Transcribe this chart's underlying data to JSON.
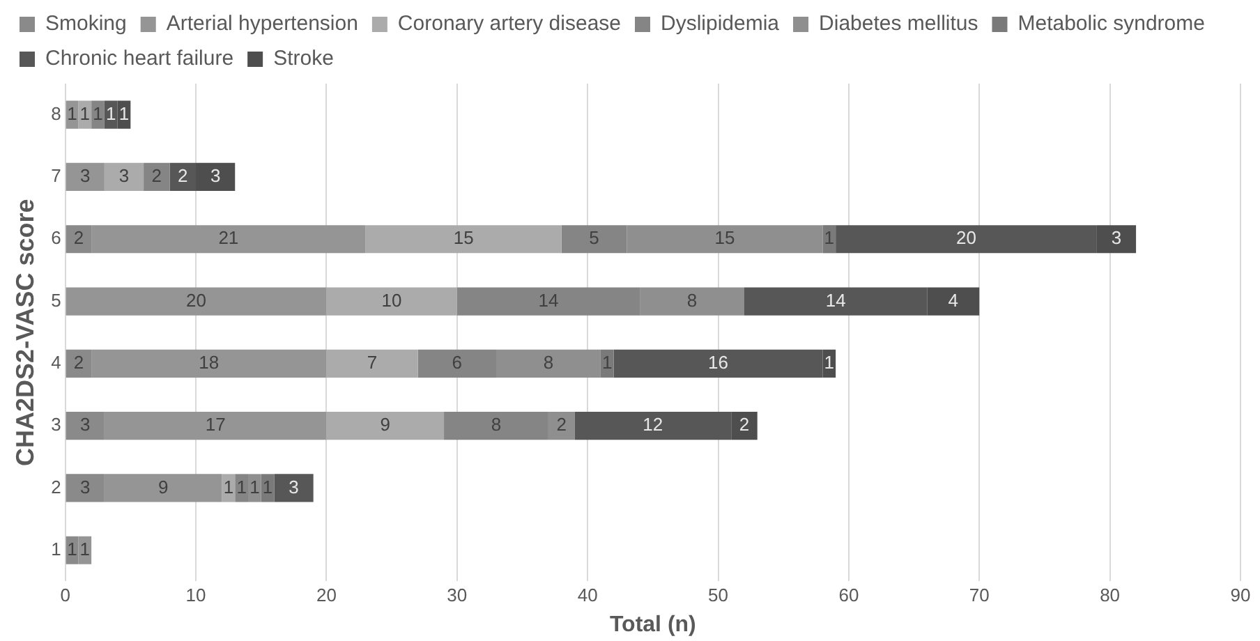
{
  "chart_data": {
    "type": "bar",
    "orientation": "horizontal",
    "stacked": true,
    "xlabel": "Total (n)",
    "ylabel": "CHA2DS2-VASC score",
    "categories": [
      "8",
      "7",
      "6",
      "5",
      "4",
      "3",
      "2",
      "1"
    ],
    "series": [
      {
        "name": "Smoking",
        "color": "#8a8a8a",
        "values": [
          null,
          null,
          2,
          null,
          2,
          3,
          3,
          1
        ]
      },
      {
        "name": "Arterial hypertension",
        "color": "#959595",
        "values": [
          1,
          3,
          21,
          20,
          18,
          17,
          9,
          1
        ]
      },
      {
        "name": "Coronary artery disease",
        "color": "#ababab",
        "values": [
          1,
          3,
          15,
          10,
          7,
          9,
          1,
          null
        ]
      },
      {
        "name": "Dyslipidemia",
        "color": "#858585",
        "values": [
          1,
          2,
          5,
          14,
          6,
          8,
          1,
          null
        ]
      },
      {
        "name": "Diabetes mellitus",
        "color": "#8f8f8f",
        "values": [
          null,
          null,
          15,
          8,
          8,
          2,
          1,
          null
        ]
      },
      {
        "name": "Metabolic syndrome",
        "color": "#7a7a7a",
        "values": [
          null,
          null,
          1,
          null,
          1,
          null,
          1,
          null
        ]
      },
      {
        "name": "Chronic heart failure",
        "color": "#575757",
        "values": [
          1,
          2,
          20,
          14,
          16,
          12,
          3,
          null
        ]
      },
      {
        "name": "Stroke",
        "color": "#4e4e4e",
        "values": [
          1,
          3,
          3,
          4,
          1,
          2,
          null,
          null
        ]
      }
    ],
    "xlim": [
      0,
      90
    ],
    "xticks": [
      0,
      10,
      20,
      30,
      40,
      50,
      60,
      70,
      80,
      90
    ],
    "grid": "x",
    "legend": "top",
    "data_labels": true
  }
}
